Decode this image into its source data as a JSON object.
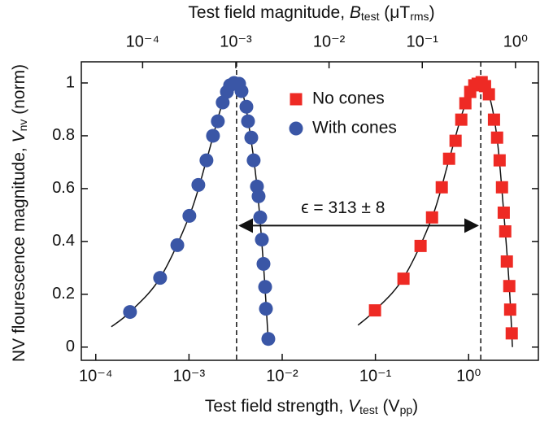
{
  "chart_data": {
    "type": "scatter",
    "xlabel": [
      {
        "t": "Test field strength, "
      },
      {
        "t": "V",
        "italic": true
      },
      {
        "t": "test",
        "sub": true
      },
      {
        "t": " (V"
      },
      {
        "t": "pp",
        "sub": true
      },
      {
        "t": ")"
      }
    ],
    "x2label": [
      {
        "t": "Test field magnitude, "
      },
      {
        "t": "B",
        "italic": true
      },
      {
        "t": "test",
        "sub": true
      },
      {
        "t": " (μT"
      },
      {
        "t": "rms",
        "sub": true
      },
      {
        "t": ")"
      }
    ],
    "ylabel": [
      {
        "t": "NV flourescence magnitude, "
      },
      {
        "t": "V",
        "italic": true
      },
      {
        "t": "nv",
        "sub": true
      },
      {
        "t": " (norm)"
      }
    ],
    "xscale": "log",
    "xlim": [
      7e-05,
      5.6
    ],
    "xticks": [
      {
        "value": 0.0001,
        "label": "10⁻⁴"
      },
      {
        "value": 0.001,
        "label": "10⁻³"
      },
      {
        "value": 0.01,
        "label": "10⁻²"
      },
      {
        "value": 0.1,
        "label": "10⁻¹"
      },
      {
        "value": 1,
        "label": "10⁰"
      }
    ],
    "x2lim": [
      2.2e-05,
      1.76
    ],
    "x2ticks": [
      {
        "value": 0.0001,
        "label": "10⁻⁴"
      },
      {
        "value": 0.001,
        "label": "10⁻³"
      },
      {
        "value": 0.01,
        "label": "10⁻²"
      },
      {
        "value": 0.1,
        "label": "10⁻¹"
      },
      {
        "value": 1,
        "label": "10⁰"
      }
    ],
    "ylim": [
      -0.05,
      1.08
    ],
    "yticks": [
      0,
      0.2,
      0.4,
      0.6,
      0.8,
      1
    ],
    "legend": "upper right",
    "series": [
      {
        "name": "No cones",
        "color": "#ee2a24",
        "marker": "square",
        "x": [
          0.099,
          0.2,
          0.305,
          0.405,
          0.515,
          0.617,
          0.724,
          0.834,
          0.923,
          1.04,
          1.15,
          1.25,
          1.38,
          1.5,
          1.65,
          1.87,
          2.02,
          2.15,
          2.28,
          2.38,
          2.47,
          2.57,
          2.73,
          2.79,
          2.9
        ],
        "values": [
          0.139,
          0.259,
          0.383,
          0.491,
          0.605,
          0.713,
          0.781,
          0.861,
          0.923,
          0.966,
          0.991,
          0.997,
          1.003,
          0.988,
          0.957,
          0.861,
          0.793,
          0.707,
          0.605,
          0.509,
          0.438,
          0.324,
          0.231,
          0.142,
          0.052
        ]
      },
      {
        "name": "With cones",
        "color": "#3a56a6",
        "marker": "circle",
        "x": [
          0.000233,
          0.00049,
          0.00075,
          0.00101,
          0.00126,
          0.00154,
          0.00181,
          0.00204,
          0.0023,
          0.00255,
          0.00276,
          0.00305,
          0.00345,
          0.00366,
          0.00413,
          0.0043,
          0.00466,
          0.00494,
          0.00536,
          0.00558,
          0.00581,
          0.00605,
          0.0063,
          0.00656,
          0.00669,
          0.0071
        ],
        "values": [
          0.133,
          0.262,
          0.386,
          0.497,
          0.614,
          0.707,
          0.8,
          0.855,
          0.926,
          0.966,
          0.991,
          1.0,
          0.997,
          0.969,
          0.91,
          0.855,
          0.793,
          0.707,
          0.608,
          0.571,
          0.491,
          0.407,
          0.315,
          0.228,
          0.145,
          0.031
        ]
      }
    ],
    "curves": [
      {
        "color": "#111111",
        "x": [
          0.000147,
          0.000233,
          0.00049,
          0.00101,
          0.00154,
          0.0023,
          0.00305,
          0.00366,
          0.0043,
          0.00536,
          0.0063,
          0.0071
        ],
        "values": [
          0.077,
          0.133,
          0.262,
          0.497,
          0.707,
          0.926,
          1.0,
          0.975,
          0.86,
          0.61,
          0.31,
          0.02
        ]
      },
      {
        "color": "#111111",
        "x": [
          0.065,
          0.099,
          0.2,
          0.405,
          0.617,
          0.923,
          1.3,
          1.65,
          2.02,
          2.38,
          2.73,
          2.95
        ],
        "values": [
          0.083,
          0.139,
          0.262,
          0.49,
          0.71,
          0.92,
          1.0,
          0.955,
          0.79,
          0.51,
          0.23,
          0.0
        ]
      }
    ],
    "vlines": [
      0.00324,
      1.35
    ],
    "arrow_y": 0.46,
    "annotation": {
      "text": "ϵ = 313 ± 8",
      "x": 0.045,
      "y": 0.525
    }
  }
}
